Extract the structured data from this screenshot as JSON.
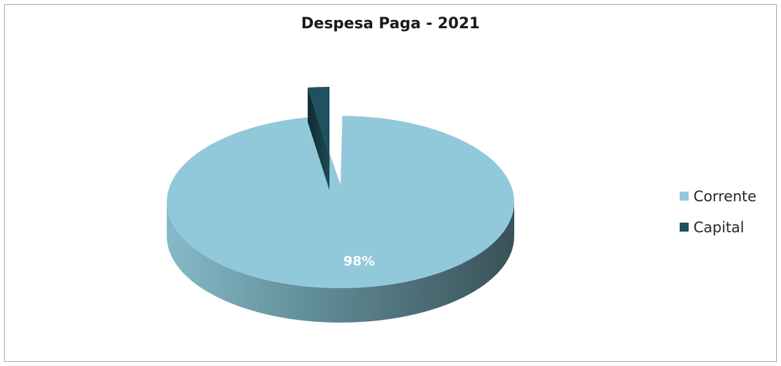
{
  "chart_data": {
    "type": "pie",
    "title": "Despesa Paga - 2021",
    "categories": [
      "Corrente",
      "Capital"
    ],
    "values": [
      98,
      2
    ],
    "data_labels": [
      "98%",
      ""
    ],
    "colors": [
      "#92c9da",
      "#1e5260"
    ],
    "style": "3d-exploded",
    "legend_position": "right"
  }
}
